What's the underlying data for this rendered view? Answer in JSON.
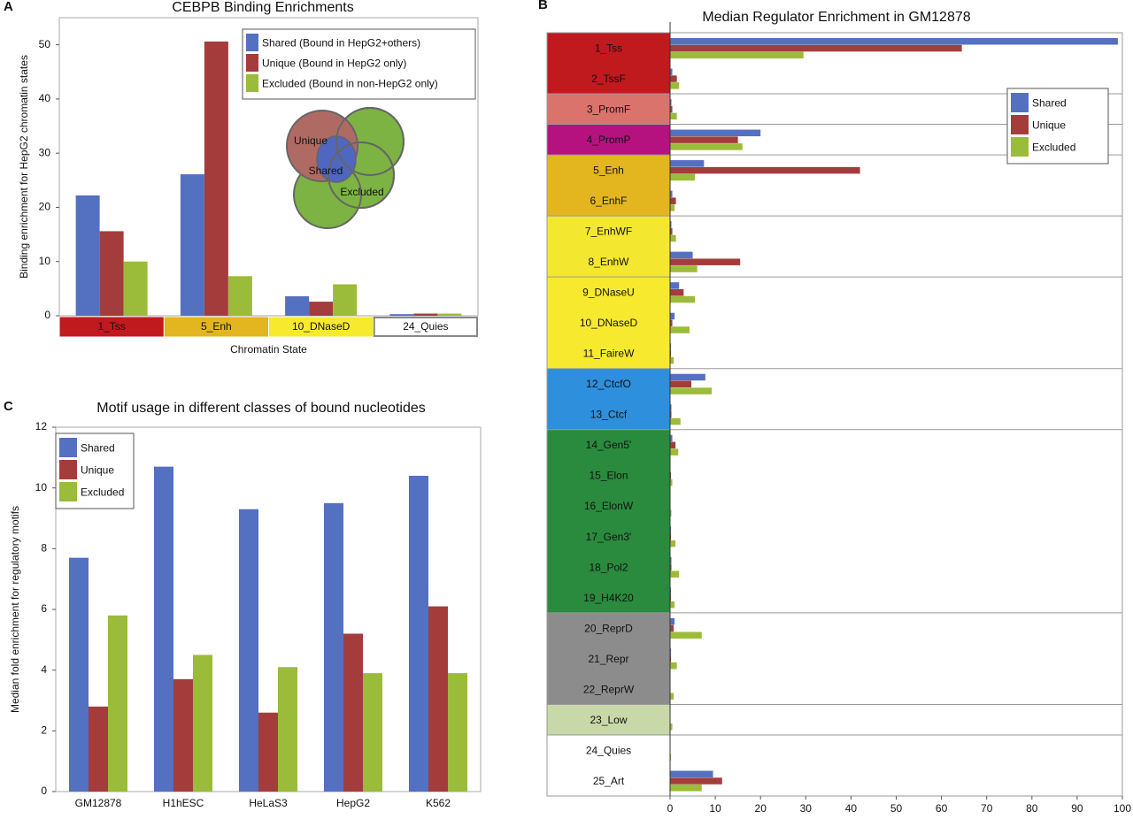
{
  "chart_data": [
    {
      "type": "bar",
      "panel": "A",
      "title": "CEBPB Binding Enrichments",
      "ylabel": "Binding enrichment for HepG2 chromatin states",
      "xlabel": "Chromatin State",
      "categories": [
        "1_Tss",
        "5_Enh",
        "10_DNaseD",
        "24_Quies"
      ],
      "category_colors": [
        "#c0191e",
        "#e3b51e",
        "#f7ea2e",
        "#ffffff"
      ],
      "series": [
        {
          "name": "Shared (Bound in HepG2+others)",
          "color": "#5470c0",
          "values": [
            22.2,
            26.1,
            3.6,
            0.3
          ]
        },
        {
          "name": "Unique (Bound in HepG2 only)",
          "color": "#a43c3c",
          "values": [
            15.6,
            50.6,
            2.6,
            0.4
          ]
        },
        {
          "name": "Excluded (Bound in non-HepG2 only)",
          "color": "#9bbb3a",
          "values": [
            10.0,
            7.3,
            5.8,
            0.4
          ]
        }
      ],
      "ylim": [
        0,
        55
      ],
      "yticks": [
        0,
        10,
        20,
        30,
        40,
        50
      ],
      "annotations": [
        "Unique",
        "Shared",
        "Excluded"
      ]
    },
    {
      "type": "barh",
      "panel": "B",
      "title": "Median Regulator Enrichment in GM12878",
      "categories": [
        "1_Tss",
        "2_TssF",
        "3_PromF",
        "4_PromP",
        "5_Enh",
        "6_EnhF",
        "7_EnhWF",
        "8_EnhW",
        "9_DNaseU",
        "10_DNaseD",
        "11_FaireW",
        "12_CtcfO",
        "13_Ctcf",
        "14_Gen5'",
        "15_Elon",
        "16_ElonW",
        "17_Gen3'",
        "18_Pol2",
        "19_H4K20",
        "20_ReprD",
        "21_Repr",
        "22_ReprW",
        "23_Low",
        "24_Quies",
        "25_Art"
      ],
      "category_colors": [
        "#c0191e",
        "#c0191e",
        "#d9736b",
        "#b5127f",
        "#e3b51e",
        "#e3b51e",
        "#f4e72f",
        "#f4e72f",
        "#f7ea2e",
        "#f7ea2e",
        "#f7ea2e",
        "#2e8fdc",
        "#2e8fdc",
        "#2a8a3e",
        "#2a8a3e",
        "#2a8a3e",
        "#2a8a3e",
        "#2a8a3e",
        "#2a8a3e",
        "#8c8c8c",
        "#8c8c8c",
        "#8c8c8c",
        "#c8d8a8",
        "#ffffff",
        "#ffffff"
      ],
      "series": [
        {
          "name": "Shared",
          "color": "#5470c0",
          "values": [
            99,
            0.5,
            0.3,
            20,
            7.5,
            0.5,
            0.3,
            5,
            2,
            1,
            0.2,
            7.8,
            0.3,
            0.5,
            0.1,
            0.1,
            0.2,
            0.3,
            0.2,
            1,
            0.2,
            0.1,
            0.1,
            0,
            9.5
          ]
        },
        {
          "name": "Unique",
          "color": "#a43c3c",
          "values": [
            64.5,
            1.5,
            0.5,
            15,
            42,
            1.3,
            0.5,
            15.5,
            3,
            0.5,
            0.2,
            4.7,
            0.3,
            1.2,
            0.2,
            0.1,
            0.2,
            0.3,
            0.2,
            0.8,
            0.2,
            0.1,
            0.1,
            0,
            11.5
          ]
        },
        {
          "name": "Excluded",
          "color": "#9bbb3a",
          "values": [
            29.5,
            2,
            1.5,
            16,
            5.5,
            1,
            1.3,
            6,
            5.5,
            4.3,
            0.8,
            9.2,
            2.3,
            1.8,
            0.5,
            0.3,
            1.2,
            2,
            1,
            7,
            1.5,
            0.8,
            0.5,
            0.2,
            7
          ]
        }
      ],
      "xlim": [
        0,
        100
      ],
      "xticks": [
        0,
        10,
        20,
        30,
        40,
        50,
        60,
        70,
        80,
        90,
        100
      ]
    },
    {
      "type": "bar",
      "panel": "C",
      "title": "Motif usage in different classes of bound nucleotides",
      "ylabel": "Median fold enrichment for regulatory motifs",
      "categories": [
        "GM12878",
        "H1hESC",
        "HeLaS3",
        "HepG2",
        "K562"
      ],
      "series": [
        {
          "name": "Shared",
          "color": "#5470c0",
          "values": [
            7.7,
            10.7,
            9.3,
            9.5,
            10.4
          ]
        },
        {
          "name": "Unique",
          "color": "#a43c3c",
          "values": [
            2.8,
            3.7,
            2.6,
            5.2,
            6.1
          ]
        },
        {
          "name": "Excluded",
          "color": "#9bbb3a",
          "values": [
            5.8,
            4.5,
            4.1,
            3.9,
            3.9
          ]
        }
      ],
      "ylim": [
        0,
        12
      ],
      "yticks": [
        0,
        2,
        4,
        6,
        8,
        10,
        12
      ]
    }
  ]
}
